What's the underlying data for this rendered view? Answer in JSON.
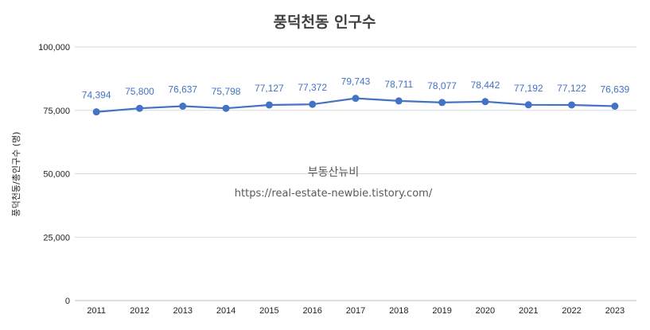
{
  "chart_data": {
    "type": "line",
    "title": "풍덕천동 인구수",
    "ylabel": "풍덕천동/총인구수 (명)",
    "xlabel": "",
    "ylim": [
      0,
      100000
    ],
    "y_ticks": [
      "0",
      "25,000",
      "50,000",
      "75,000",
      "100,000"
    ],
    "y_tick_values": [
      0,
      25000,
      50000,
      75000,
      100000
    ],
    "categories": [
      "2011",
      "2012",
      "2013",
      "2014",
      "2015",
      "2016",
      "2017",
      "2018",
      "2019",
      "2020",
      "2021",
      "2022",
      "2023"
    ],
    "series": [
      {
        "values": [
          74394,
          75800,
          76637,
          75798,
          77127,
          77372,
          79743,
          78711,
          78077,
          78442,
          77192,
          77122,
          76639
        ],
        "data_labels": [
          "74,394",
          "75,800",
          "76,637",
          "75,798",
          "77,127",
          "77,372",
          "79,743",
          "78,711",
          "78,077",
          "78,442",
          "77,192",
          "77,122",
          "76,639"
        ],
        "color": "#4472c4"
      }
    ],
    "grid": true,
    "legend": "none"
  },
  "watermark": {
    "name": "부동산뉴비",
    "url": "https://real-estate-newbie.tistory.com/"
  }
}
